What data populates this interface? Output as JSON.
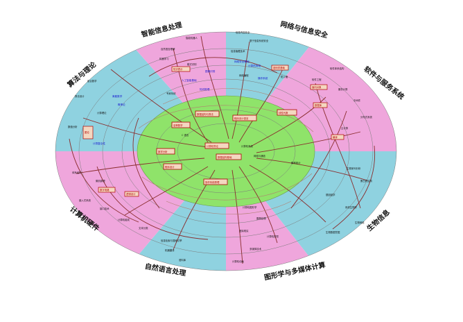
{
  "diagram": {
    "colors": {
      "pink": "#efa6dc",
      "teal": "#8fd2e0",
      "core": "#8fe36a",
      "link": "#8a2c2c",
      "boxed": "#b00000",
      "blue_text": "#1515d0"
    },
    "sectors": [
      {
        "label": "智能信息处理",
        "fill": "pink"
      },
      {
        "label": "网络与信息安全",
        "fill": "teal"
      },
      {
        "label": "软件与服务系统",
        "fill": "pink"
      },
      {
        "label": "生物信息",
        "fill": "teal"
      },
      {
        "label": "图形学与多媒体计算",
        "fill": "pink"
      },
      {
        "label": "自然语言处理",
        "fill": "teal"
      },
      {
        "label": "计算机硬件",
        "fill": "pink"
      },
      {
        "label": "算法与理论",
        "fill": "teal"
      }
    ]
  }
}
